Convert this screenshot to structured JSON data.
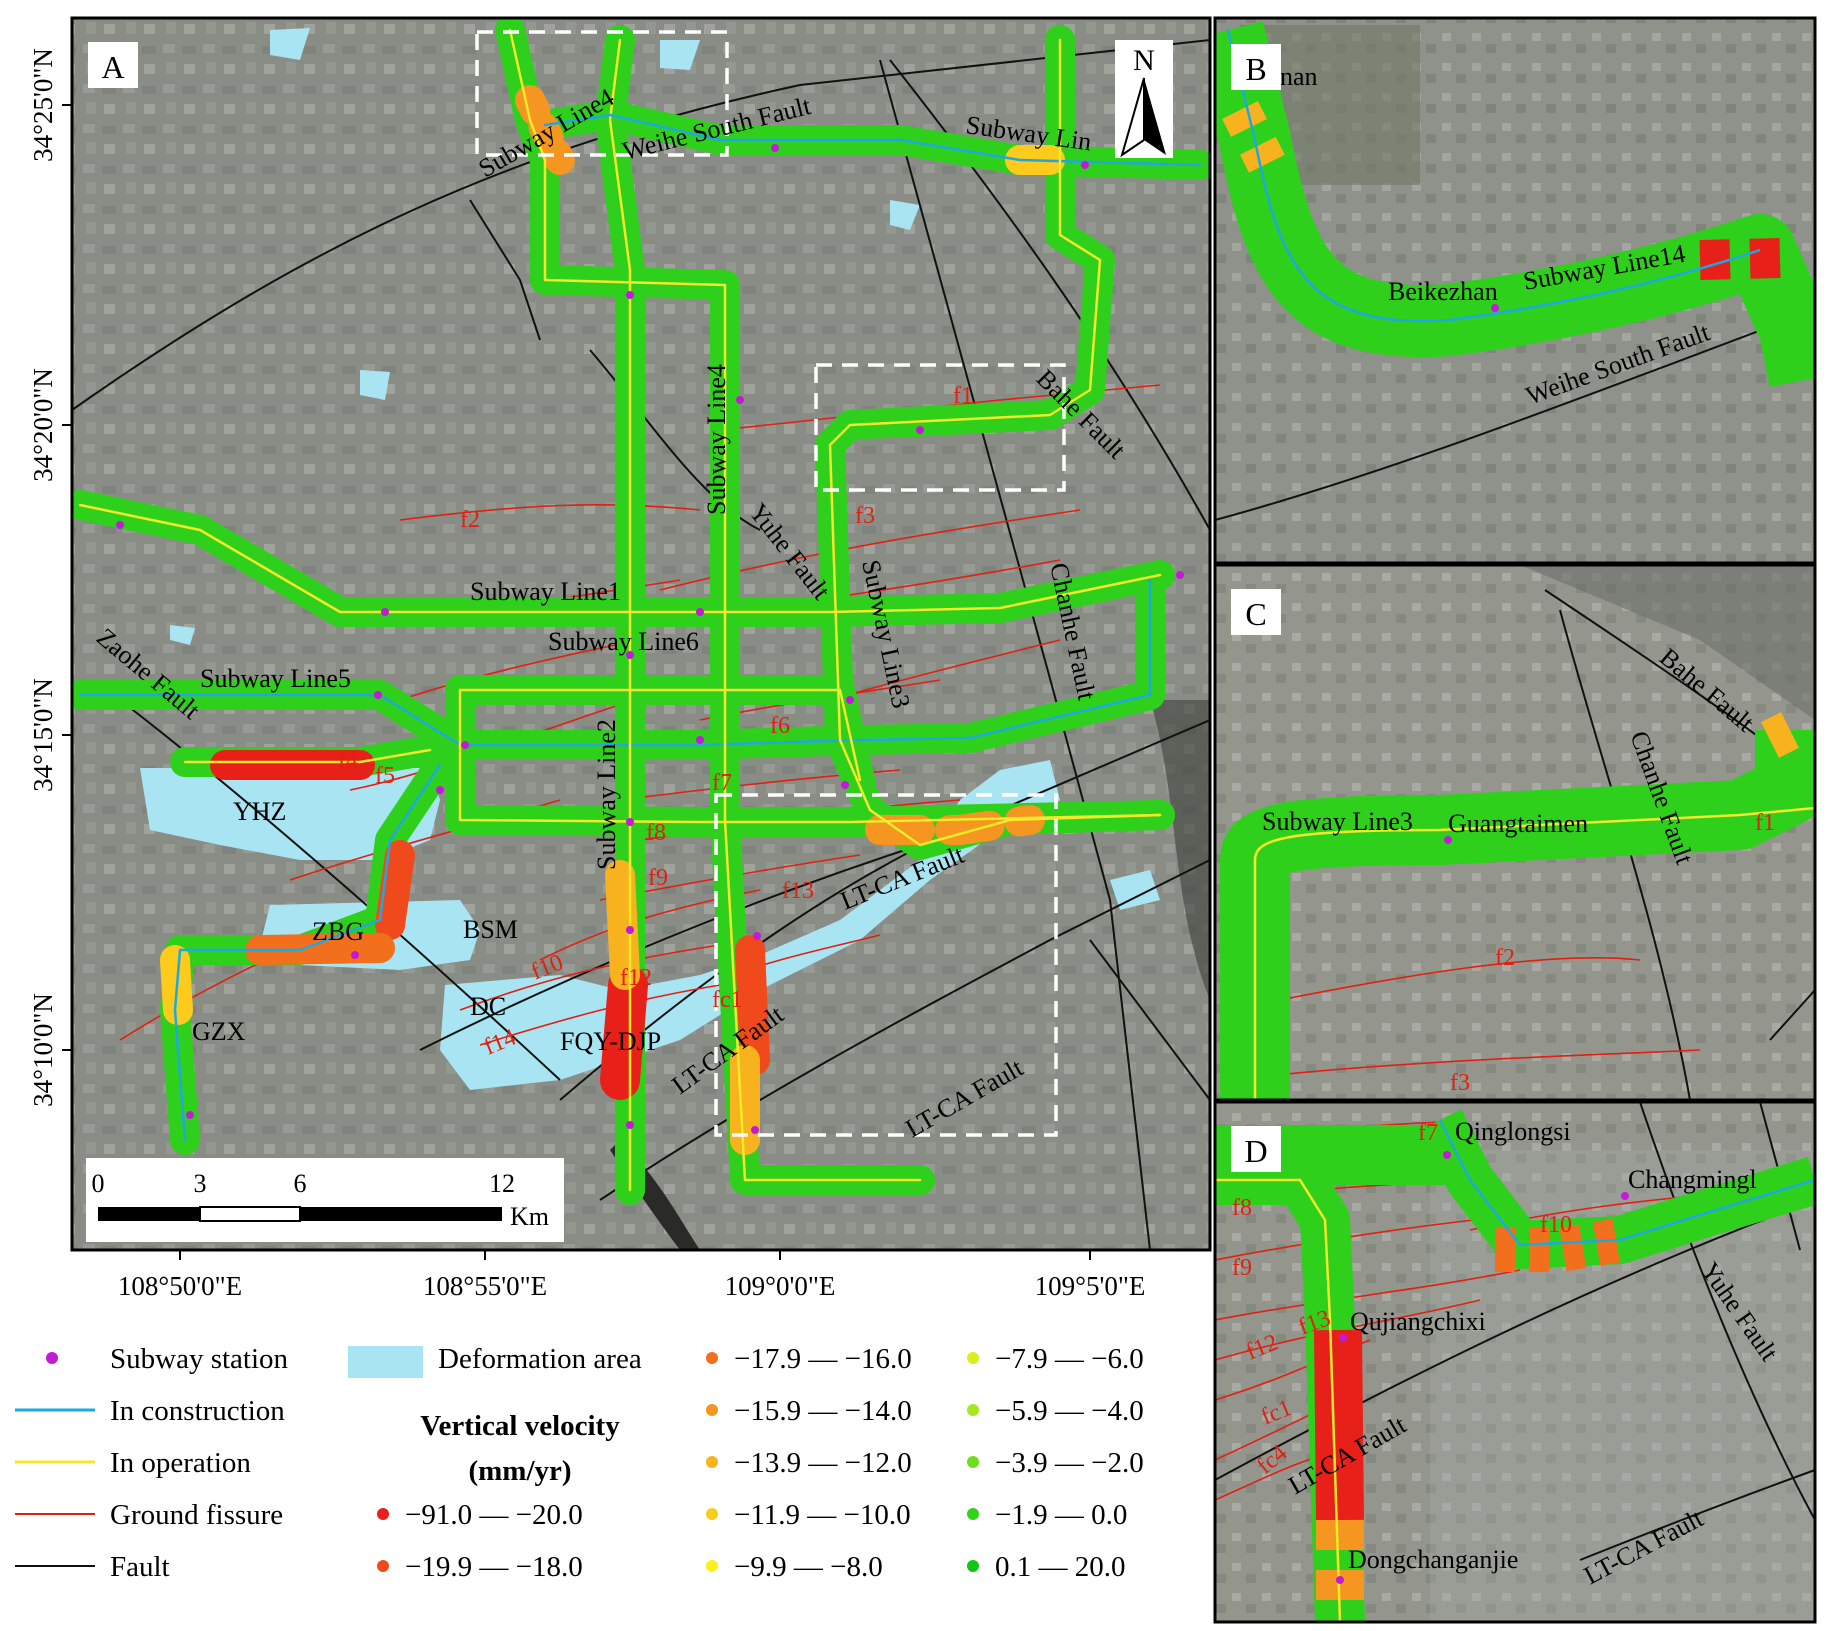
{
  "panels": {
    "A": {
      "letter": "A"
    },
    "B": {
      "letter": "B",
      "top_left_text": "nan",
      "station": "Beikezhan",
      "subway": "Subway Line14",
      "fault": "Weihe South Fault"
    },
    "C": {
      "letter": "C",
      "subway": "Subway Line3",
      "station": "Guangtaimen",
      "fault1": "Bahe Fault",
      "fault2": "Chanhe Fault",
      "fissures": [
        "f1",
        "f2",
        "f3"
      ]
    },
    "D": {
      "letter": "D",
      "stations": [
        "Qinglongsi",
        "Changmingl",
        "Qujiangchixi",
        "Dongchanganjie"
      ],
      "faults": [
        "Yuhe Fault",
        "LT-CA Fault",
        "LT-CA Fault"
      ],
      "fissures": [
        "f7",
        "f8",
        "f9",
        "f10",
        "f12",
        "f13",
        "fc1",
        "fc4"
      ]
    }
  },
  "main_map": {
    "north": "N",
    "lat_labels": [
      "34°25'0\"N",
      "34°20'0\"N",
      "34°15'0\"N",
      "34°10'0\"N"
    ],
    "lon_labels": [
      "108°50'0\"E",
      "108°55'0\"E",
      "109°0'0\"E",
      "109°5'0\"E"
    ],
    "subway_labels": [
      "Subway Line4",
      "Weihe South Fault",
      "Subway Lin",
      "Subway Line4",
      "Subway Line1",
      "Subway Line6",
      "Subway Line5",
      "Subway Line2",
      "Subway Line3"
    ],
    "fault_labels": [
      "Bahe Fault",
      "Yuhe Fault",
      "Chanhe Fault",
      "Zaohe Fault",
      "LT-CA Fault",
      "LT-CA Fault",
      "LT-CA Fault"
    ],
    "area_labels": [
      "YHZ",
      "ZBG",
      "BSM",
      "DC",
      "GZX",
      "FQY-DJP"
    ],
    "fissure_labels": [
      "f1",
      "f2",
      "f3",
      "f4",
      "f5",
      "f6",
      "f7",
      "f8",
      "f9",
      "f10",
      "f12",
      "f13",
      "f14",
      "fc1"
    ],
    "scale": {
      "ticks": [
        "0",
        "3",
        "6",
        "12"
      ],
      "unit": "Km"
    }
  },
  "legend": {
    "station": "Subway station",
    "deformation": "Deformation area",
    "construction": "In construction",
    "operation": "In operation",
    "fissure": "Ground fissure",
    "fault": "Fault",
    "velocity_title1": "Vertical velocity",
    "velocity_title2": "(mm/yr)",
    "classes": [
      {
        "label": "−91.0 — −20.0",
        "color": "#e8201a"
      },
      {
        "label": "−19.9 — −18.0",
        "color": "#f04a1c"
      },
      {
        "label": "−17.9 — −16.0",
        "color": "#f26f1e"
      },
      {
        "label": "−15.9 — −14.0",
        "color": "#f49620"
      },
      {
        "label": "−13.9 — −12.0",
        "color": "#f7b21e"
      },
      {
        "label": "−11.9 — −10.0",
        "color": "#fccb1b"
      },
      {
        "label": "−9.9 — −8.0",
        "color": "#fff01a"
      },
      {
        "label": "−7.9 — −6.0",
        "color": "#d9f01e"
      },
      {
        "label": "−5.9 — −4.0",
        "color": "#a8e61e"
      },
      {
        "label": "−3.9 — −2.0",
        "color": "#6fdc1c"
      },
      {
        "label": "−1.9 — 0.0",
        "color": "#34d21a"
      },
      {
        "label": "0.1 — 20.0",
        "color": "#12c414"
      }
    ],
    "colors": {
      "station": "#c21bd6",
      "deformation": "#a9e4f2",
      "construction": "#1da8e0",
      "operation": "#f2ea2a",
      "fissure": "#e02010",
      "fault": "#111111"
    }
  }
}
